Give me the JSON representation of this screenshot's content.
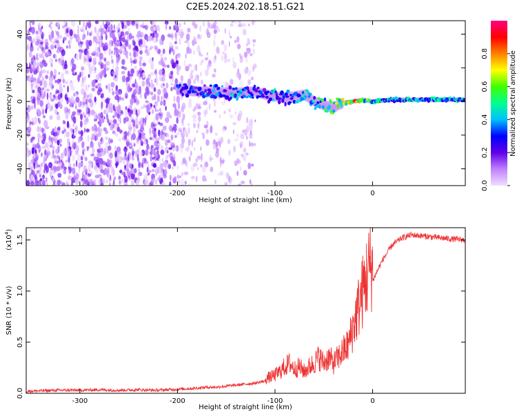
{
  "title": "C2E5.2024.202.18.51.G21",
  "chart_data": [
    {
      "type": "heatmap",
      "xlabel": "Height of straight line (km)",
      "ylabel": "Frequency (Hz)",
      "xlim": [
        -355,
        95
      ],
      "ylim": [
        -50,
        48
      ],
      "x_ticks": [
        -300,
        -200,
        -100,
        0
      ],
      "x_tick_labels": [
        "-300",
        "-200",
        "-100",
        "0"
      ],
      "y_ticks": [
        -40,
        -20,
        0,
        20,
        40
      ],
      "y_tick_labels": [
        "-40",
        "-20",
        "0",
        "20",
        "40"
      ],
      "colorbar": {
        "label": "Normalized spectral amplitude",
        "range": [
          0,
          1
        ],
        "ticks": [
          0,
          0.2,
          0.4,
          0.6,
          0.8
        ],
        "tick_labels": [
          "0.0",
          "0.2",
          "0.4",
          "0.6",
          "0.8"
        ],
        "colormap": [
          "#f0e0ff",
          "#c080ff",
          "#6000e8",
          "#0000ff",
          "#00c0ff",
          "#00ff90",
          "#40ff00",
          "#ffff00",
          "#ff8000",
          "#ff0000",
          "#ff0080"
        ]
      },
      "noise_region_x": [
        -355,
        -120
      ],
      "signal_ridge": {
        "x": [
          -200,
          -180,
          -160,
          -140,
          -120,
          -110,
          -100,
          -90,
          -80,
          -70,
          -60,
          -50,
          -40,
          -35,
          -30,
          -20,
          -10,
          0,
          20,
          40,
          60,
          80,
          95
        ],
        "y": [
          7,
          6,
          5.5,
          5,
          6,
          4,
          3,
          2,
          3,
          4,
          0,
          -2,
          -4,
          -2,
          -1,
          0,
          1,
          0,
          1,
          1,
          1,
          1,
          1
        ],
        "amplitude": [
          0.3,
          0.3,
          0.35,
          0.4,
          0.3,
          0.35,
          0.4,
          0.35,
          0.35,
          0.4,
          0.5,
          0.5,
          0.6,
          0.7,
          0.75,
          0.8,
          0.7,
          0.5,
          0.45,
          0.45,
          0.45,
          0.45,
          0.45
        ]
      }
    },
    {
      "type": "line",
      "xlabel": "Height of straight line (km)",
      "ylabel": "SNR (10 * v/v)",
      "y_multiplier": "(x10",
      "y_multiplier_exp": "4",
      "y_multiplier_close": ")",
      "xlim": [
        -355,
        95
      ],
      "ylim": [
        0,
        1.62
      ],
      "x_ticks": [
        -300,
        -200,
        -100,
        0
      ],
      "x_tick_labels": [
        "-300",
        "-200",
        "-100",
        "0"
      ],
      "y_ticks": [
        0,
        0.5,
        1.0,
        1.5
      ],
      "y_tick_labels": [
        "0.0",
        "0.5",
        "1.0",
        "1.5"
      ],
      "line_color": "#ee3333",
      "series": [
        {
          "x": [
            -355,
            -340,
            -320,
            -300,
            -280,
            -260,
            -240,
            -220,
            -200,
            -180,
            -170,
            -160,
            -150,
            -140,
            -130,
            -120,
            -110,
            -100,
            -95,
            -90,
            -85,
            -80,
            -75,
            -70,
            -65,
            -60,
            -55,
            -50,
            -45,
            -40,
            -35,
            -30,
            -25,
            -20,
            -15,
            -10,
            -5,
            0,
            5,
            10,
            20,
            30,
            40,
            50,
            60,
            70,
            80,
            95
          ],
          "y": [
            0.02,
            0.025,
            0.03,
            0.03,
            0.035,
            0.03,
            0.035,
            0.03,
            0.04,
            0.05,
            0.06,
            0.06,
            0.07,
            0.08,
            0.09,
            0.1,
            0.12,
            0.15,
            0.18,
            0.22,
            0.25,
            0.2,
            0.22,
            0.18,
            0.22,
            0.25,
            0.3,
            0.25,
            0.3,
            0.25,
            0.3,
            0.35,
            0.4,
            0.55,
            0.7,
            0.85,
            1.0,
            1.1,
            1.2,
            1.3,
            1.45,
            1.52,
            1.55,
            1.54,
            1.53,
            1.52,
            1.51,
            1.5
          ]
        }
      ]
    }
  ]
}
